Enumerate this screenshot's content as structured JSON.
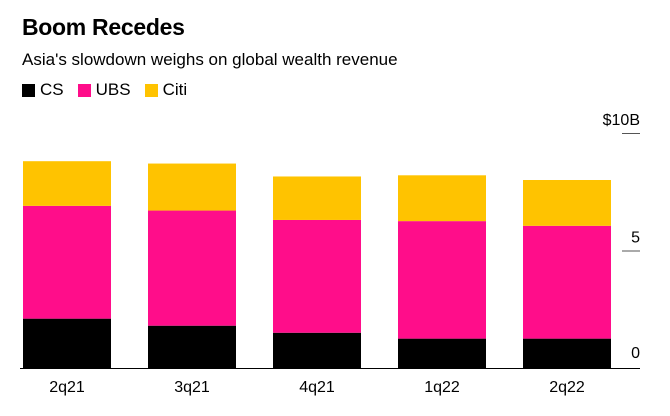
{
  "colors": {
    "CS": "#000000",
    "UBS": "#ff0d8a",
    "Citi": "#ffc300",
    "axis": "#000000",
    "tick": "#555555"
  },
  "chart_data": {
    "type": "bar",
    "stacked": true,
    "title": "Boom Recedes",
    "subtitle": "Asia's slowdown weighs on global wealth revenue",
    "categories": [
      "2q21",
      "3q21",
      "4q21",
      "1q22",
      "2q22"
    ],
    "series": [
      {
        "name": "CS",
        "values": [
          2.1,
          1.8,
          1.5,
          1.25,
          1.25
        ]
      },
      {
        "name": "UBS",
        "values": [
          4.8,
          4.9,
          4.8,
          5.0,
          4.8
        ]
      },
      {
        "name": "Citi",
        "values": [
          1.9,
          2.0,
          1.85,
          1.95,
          1.95
        ]
      }
    ],
    "yticks": [
      {
        "value": 0,
        "label": "0"
      },
      {
        "value": 5,
        "label": "5"
      },
      {
        "value": 10,
        "label": "$10B"
      }
    ],
    "ylim": [
      0,
      10
    ],
    "grid": false,
    "legend_position": "top-left",
    "yaxis_side": "right"
  }
}
